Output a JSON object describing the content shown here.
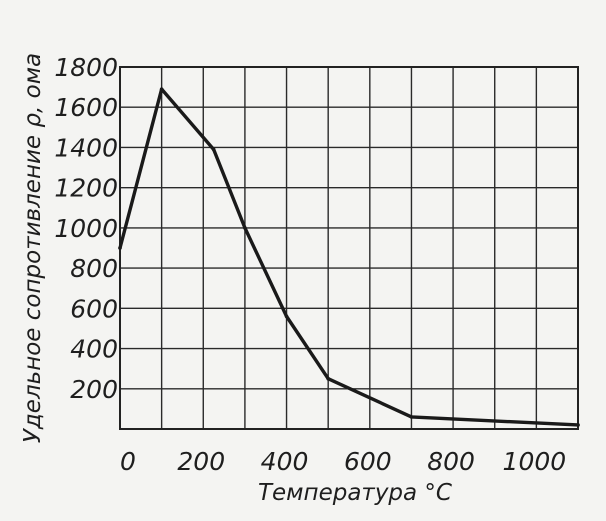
{
  "chart_data": {
    "type": "line",
    "xlabel": "Температура °C",
    "ylabel": "Удельное сопротивление ρ, ома",
    "xlim": [
      0,
      1100
    ],
    "ylim": [
      0,
      1800
    ],
    "x_ticks": [
      0,
      200,
      400,
      600,
      800,
      1000
    ],
    "x_tick_labels": [
      "0",
      "200",
      "400",
      "600",
      "800",
      "1000"
    ],
    "y_ticks": [
      200,
      400,
      600,
      800,
      1000,
      1200,
      1400,
      1600,
      1800
    ],
    "y_tick_labels": [
      "200",
      "400",
      "600",
      "800",
      "1000",
      "1200",
      "1400",
      "1600",
      "1800"
    ],
    "grid": true,
    "series": [
      {
        "x": [
          0,
          100,
          225,
          300,
          400,
          500,
          700,
          1100
        ],
        "y": [
          900,
          1690,
          1390,
          1000,
          560,
          250,
          60,
          20
        ]
      }
    ]
  }
}
